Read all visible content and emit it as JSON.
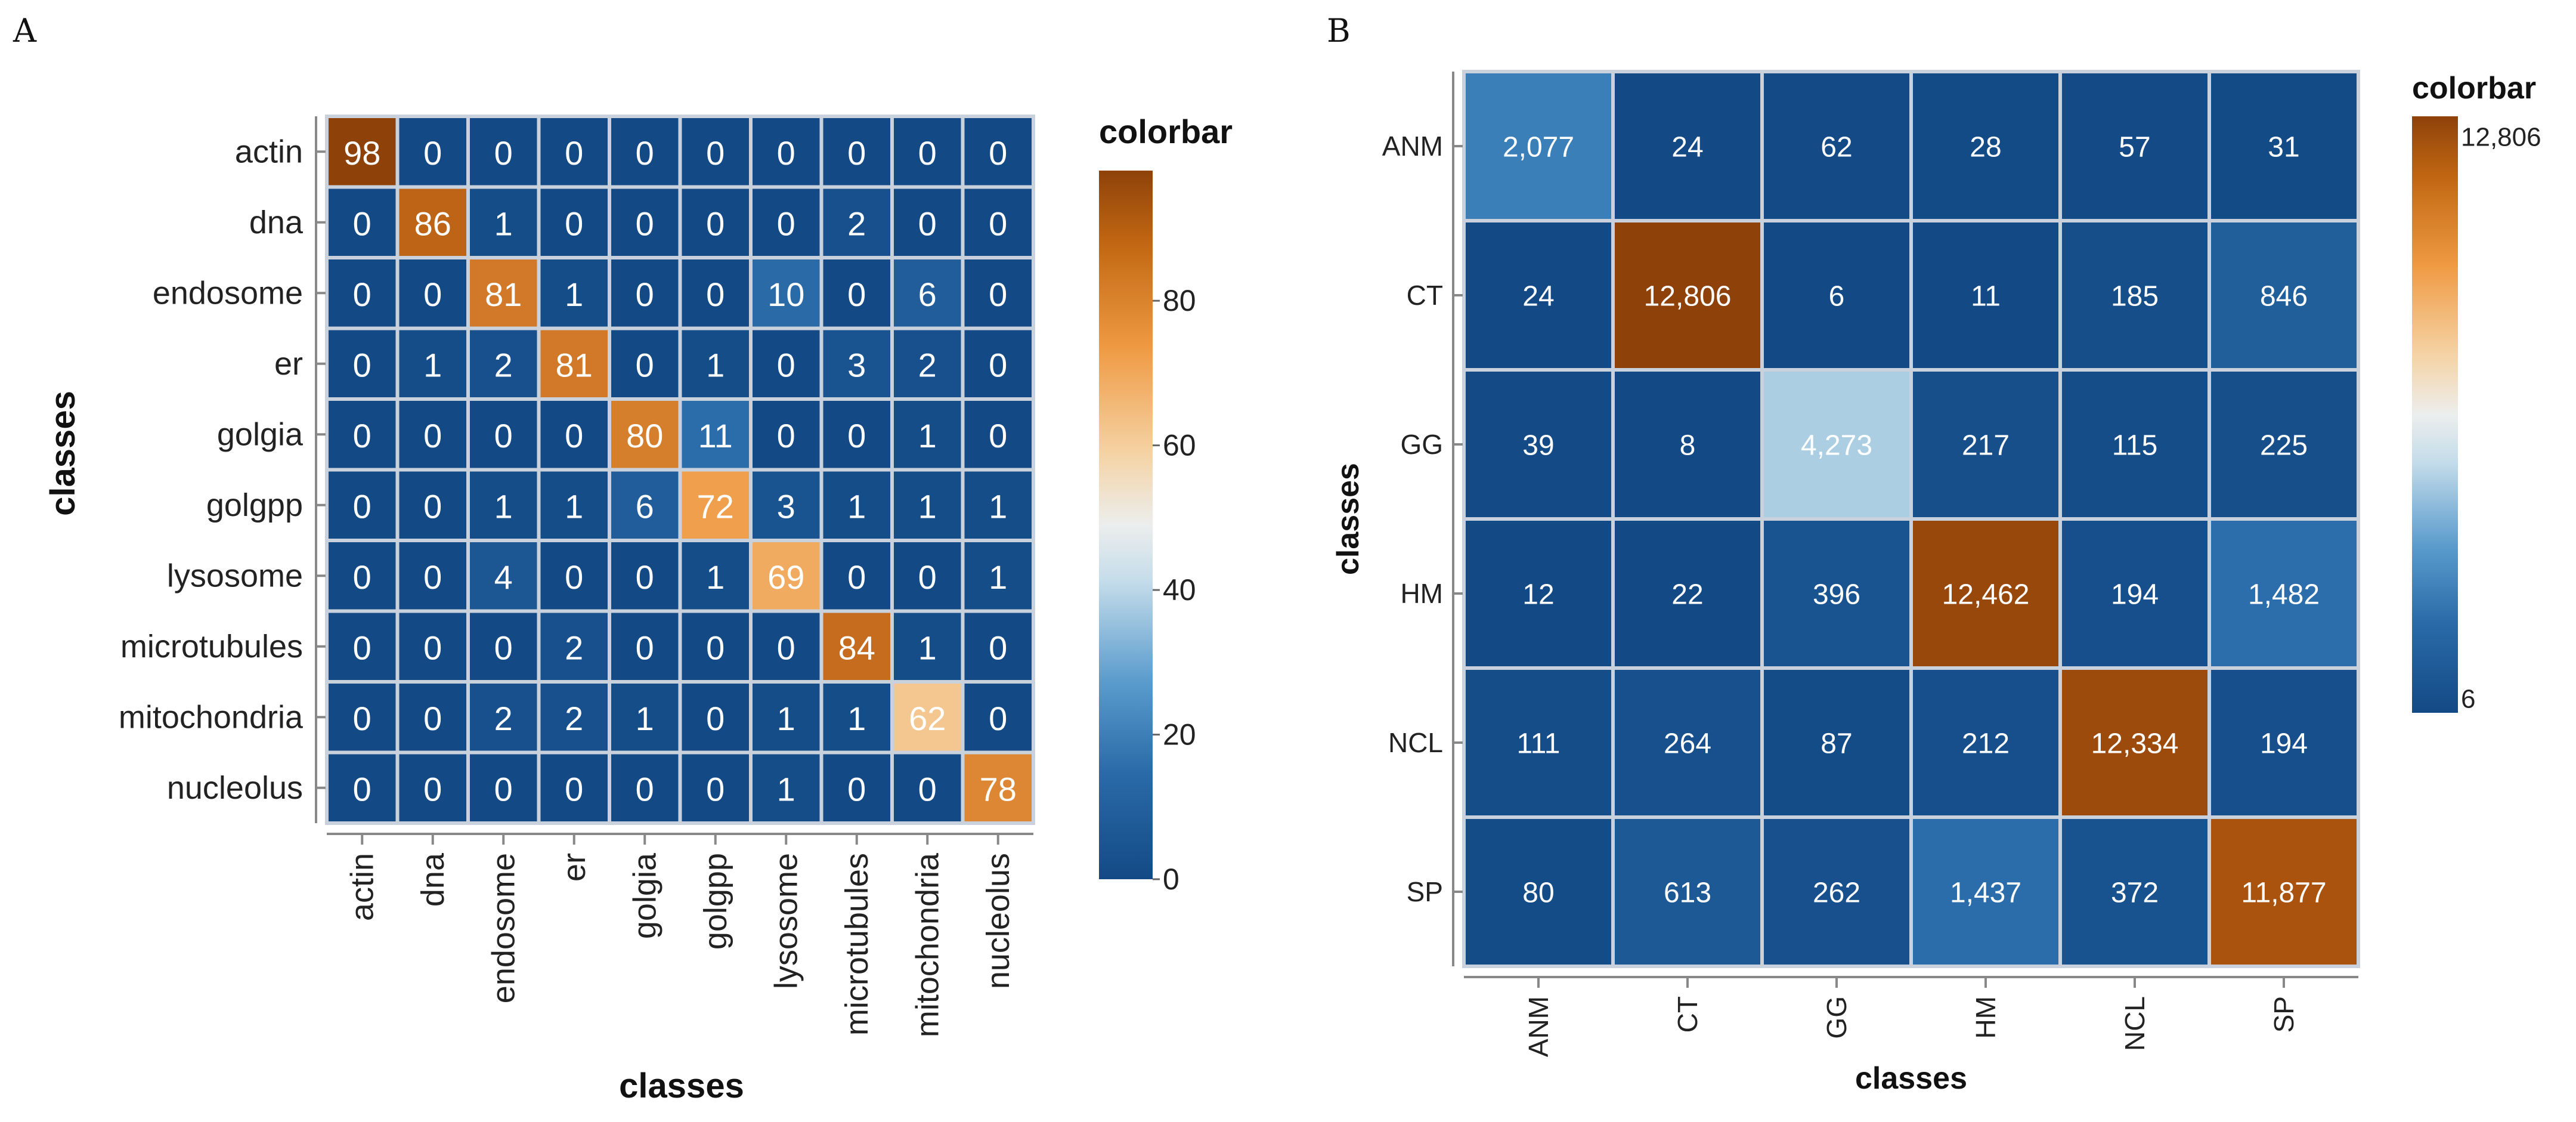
{
  "colorscale": {
    "low": "#1b4f8a",
    "mid": "#d8e7ef",
    "high": "#9c4a0c",
    "stops": [
      "#134a86",
      "#3379b6",
      "#9ec8e0",
      "#e9eef0",
      "#f5d3a5",
      "#ef9a43",
      "#b55a0f",
      "#8e420a"
    ],
    "grid_line": "#c9d2dc"
  },
  "chart_data": [
    {
      "panel": "A",
      "type": "heatmap",
      "xlabel": "classes",
      "ylabel": "classes",
      "colorbar_title": "colorbar",
      "colorbar_ticks": [
        0,
        20,
        40,
        60,
        80
      ],
      "zmin": 0,
      "zmax": 98,
      "categories": [
        "actin",
        "dna",
        "endosome",
        "er",
        "golgia",
        "golgpp",
        "lysosome",
        "microtubules",
        "mitochondria",
        "nucleolus"
      ],
      "values": [
        [
          98,
          0,
          0,
          0,
          0,
          0,
          0,
          0,
          0,
          0
        ],
        [
          0,
          86,
          1,
          0,
          0,
          0,
          0,
          2,
          0,
          0
        ],
        [
          0,
          0,
          81,
          1,
          0,
          0,
          10,
          0,
          6,
          0
        ],
        [
          0,
          1,
          2,
          81,
          0,
          1,
          0,
          3,
          2,
          0
        ],
        [
          0,
          0,
          0,
          0,
          80,
          11,
          0,
          0,
          1,
          0
        ],
        [
          0,
          0,
          1,
          1,
          6,
          72,
          3,
          1,
          1,
          1
        ],
        [
          0,
          0,
          4,
          0,
          0,
          1,
          69,
          0,
          0,
          1
        ],
        [
          0,
          0,
          0,
          2,
          0,
          0,
          0,
          84,
          1,
          0
        ],
        [
          0,
          0,
          2,
          2,
          1,
          0,
          1,
          1,
          62,
          0
        ],
        [
          0,
          0,
          0,
          0,
          0,
          0,
          1,
          0,
          0,
          78
        ]
      ]
    },
    {
      "panel": "B",
      "type": "heatmap",
      "xlabel": "classes",
      "ylabel": "classes",
      "colorbar_title": "colorbar",
      "colorbar_ticks": [
        "6",
        "12,806"
      ],
      "zmin": 6,
      "zmax": 12806,
      "categories": [
        "ANM",
        "CT",
        "GG",
        "HM",
        "NCL",
        "SP"
      ],
      "values": [
        [
          2077,
          24,
          62,
          28,
          57,
          31
        ],
        [
          24,
          12806,
          6,
          11,
          185,
          846
        ],
        [
          39,
          8,
          4273,
          217,
          115,
          225
        ],
        [
          12,
          22,
          396,
          12462,
          194,
          1482
        ],
        [
          111,
          264,
          87,
          212,
          12334,
          194
        ],
        [
          80,
          613,
          262,
          1437,
          372,
          11877
        ]
      ]
    }
  ]
}
